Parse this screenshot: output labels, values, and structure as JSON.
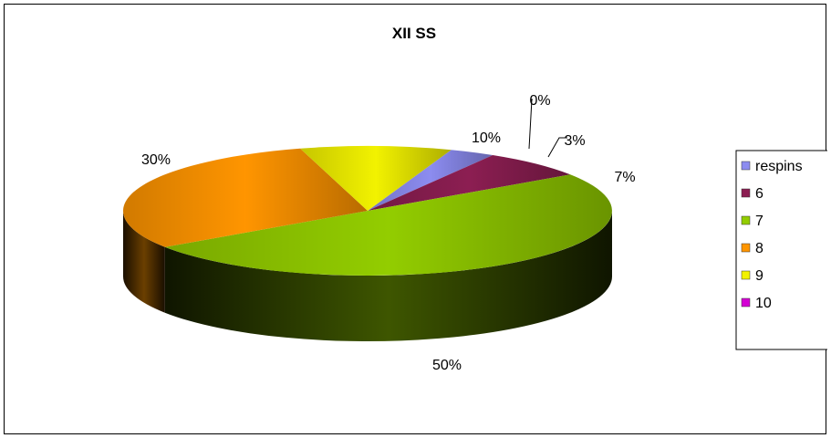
{
  "chart_data": {
    "type": "pie",
    "title": "XII SS",
    "style": "3d",
    "categories": [
      "respins",
      "6",
      "7",
      "8",
      "9",
      "10"
    ],
    "values": [
      3,
      7,
      50,
      30,
      10,
      0
    ],
    "labels": [
      "3%",
      "7%",
      "50%",
      "30%",
      "10%",
      "0%"
    ],
    "colors": [
      "#8c8cf0",
      "#8c1e52",
      "#93cd00",
      "#ff9500",
      "#f2f200",
      "#d400d4"
    ],
    "legend_position": "right"
  }
}
